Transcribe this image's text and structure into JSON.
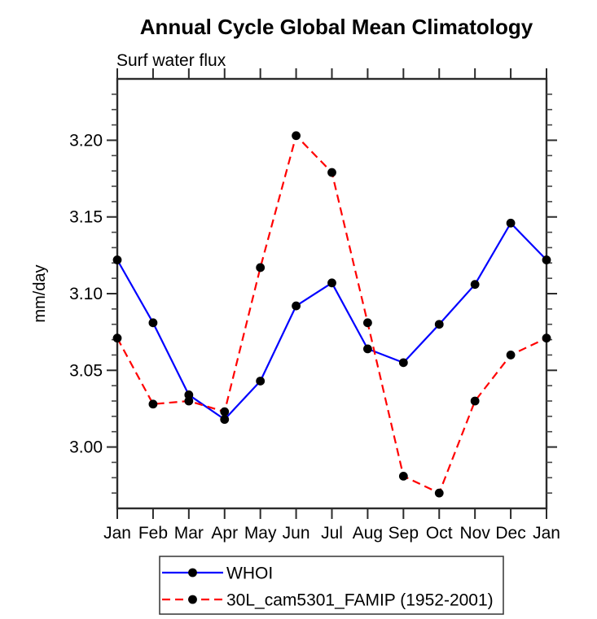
{
  "chart_data": {
    "type": "line",
    "title": "Annual Cycle Global Mean Climatology",
    "subtitle": "Surf water flux",
    "ylabel": "mm/day",
    "xlabel": "",
    "categories": [
      "Jan",
      "Feb",
      "Mar",
      "Apr",
      "May",
      "Jun",
      "Jul",
      "Aug",
      "Sep",
      "Oct",
      "Nov",
      "Dec",
      "Jan"
    ],
    "ylim": [
      2.96,
      3.24
    ],
    "ytick_major": [
      3.0,
      3.05,
      3.1,
      3.15,
      3.2
    ],
    "ytick_labels": [
      "3.00",
      "3.05",
      "3.10",
      "3.15",
      "3.20"
    ],
    "ytick_minor_step": 0.01,
    "grid": false,
    "legend_position": "bottom",
    "axis_color": "#2b2b2b",
    "series": [
      {
        "name": "WHOI",
        "color": "#0000ff",
        "style": "solid",
        "marker": "circle",
        "marker_color": "#000000",
        "values": [
          3.122,
          3.081,
          3.034,
          3.018,
          3.043,
          3.092,
          3.107,
          3.064,
          3.055,
          3.08,
          3.106,
          3.146,
          3.122
        ]
      },
      {
        "name": "30L_cam5301_FAMIP (1952-2001)",
        "color": "#ff0000",
        "style": "dashed",
        "marker": "circle",
        "marker_color": "#000000",
        "values": [
          3.071,
          3.028,
          3.03,
          3.023,
          3.117,
          3.203,
          3.179,
          3.081,
          2.981,
          2.97,
          3.03,
          3.06,
          3.071
        ]
      }
    ]
  }
}
